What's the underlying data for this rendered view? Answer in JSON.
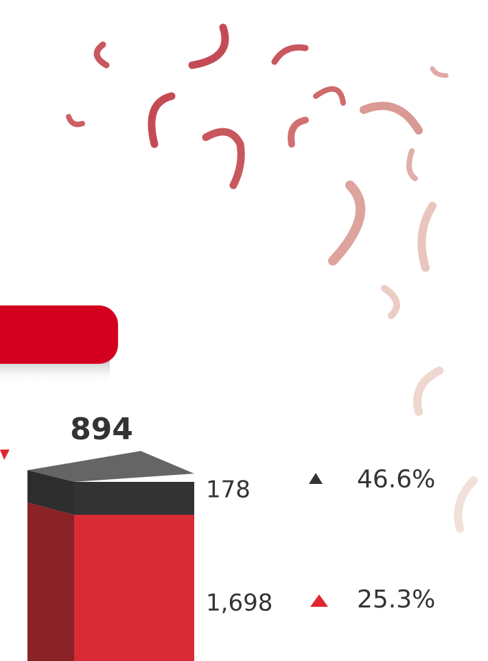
{
  "bar": {
    "total": "894"
  },
  "rows": [
    {
      "value": "178",
      "change": "46.6%"
    },
    {
      "value": "1,698",
      "change": "25.3%"
    }
  ]
}
